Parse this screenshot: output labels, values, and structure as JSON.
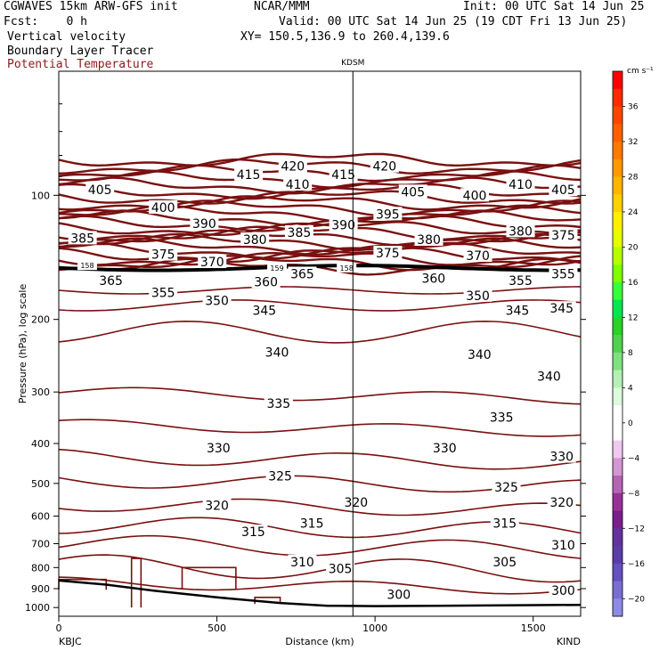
{
  "header": {
    "model": "CGWAVES 15km ARW-GFS init",
    "org": "NCAR/MMM",
    "init": "Init: 00 UTC Sat 14 Jun 25",
    "fcst": "Fcst:    0 h",
    "valid": "Valid: 00 UTC Sat 14 Jun 25 (19 CDT Fri 13 Jun 25)",
    "field1": "Vertical velocity",
    "xy": "XY= 150.5,136.9 to 260.4,139.6",
    "field2": "Boundary Layer Tracer",
    "field3": "Potential Temperature",
    "field3_color": "#8b1a1a"
  },
  "chart_data": {
    "type": "contour",
    "xlabel": "Distance (km)",
    "ylabel": "Pressure (hPa), log scale",
    "xlim": [
      0,
      1650
    ],
    "ylim": [
      1050,
      50
    ],
    "x_ticks": [
      0,
      500,
      1000,
      1500
    ],
    "y_ticks": [
      100,
      200,
      300,
      400,
      500,
      600,
      700,
      800,
      900,
      1000
    ],
    "left_station": "KBJC",
    "right_station": "KIND",
    "marker_station": "KDSM",
    "marker_distance": 930,
    "contour_color": "#7a1010",
    "theta_labels": [
      {
        "v": "420",
        "x": 740,
        "p": 85
      },
      {
        "v": "420",
        "x": 1030,
        "p": 85
      },
      {
        "v": "415",
        "x": 600,
        "p": 89
      },
      {
        "v": "415",
        "x": 900,
        "p": 89
      },
      {
        "v": "410",
        "x": 755,
        "p": 94
      },
      {
        "v": "410",
        "x": 1460,
        "p": 94
      },
      {
        "v": "405",
        "x": 130,
        "p": 97
      },
      {
        "v": "405",
        "x": 1120,
        "p": 98
      },
      {
        "v": "405",
        "x": 1595,
        "p": 97
      },
      {
        "v": "400",
        "x": 330,
        "p": 107
      },
      {
        "v": "400",
        "x": 1315,
        "p": 100
      },
      {
        "v": "395",
        "x": 1040,
        "p": 111
      },
      {
        "v": "390",
        "x": 460,
        "p": 117
      },
      {
        "v": "390",
        "x": 900,
        "p": 118
      },
      {
        "v": "385",
        "x": 75,
        "p": 127
      },
      {
        "v": "385",
        "x": 760,
        "p": 123
      },
      {
        "v": "380",
        "x": 620,
        "p": 128
      },
      {
        "v": "380",
        "x": 1170,
        "p": 128
      },
      {
        "v": "380",
        "x": 1460,
        "p": 122
      },
      {
        "v": "375",
        "x": 330,
        "p": 139
      },
      {
        "v": "375",
        "x": 1040,
        "p": 138
      },
      {
        "v": "375",
        "x": 1595,
        "p": 125
      },
      {
        "v": "370",
        "x": 485,
        "p": 145
      },
      {
        "v": "370",
        "x": 1325,
        "p": 140
      },
      {
        "v": "365",
        "x": 165,
        "p": 161
      },
      {
        "v": "365",
        "x": 770,
        "p": 155
      },
      {
        "v": "360",
        "x": 655,
        "p": 162
      },
      {
        "v": "360",
        "x": 1185,
        "p": 159
      },
      {
        "v": "355",
        "x": 330,
        "p": 172
      },
      {
        "v": "355",
        "x": 1460,
        "p": 161
      },
      {
        "v": "355",
        "x": 1595,
        "p": 155
      },
      {
        "v": "350",
        "x": 500,
        "p": 180
      },
      {
        "v": "350",
        "x": 1325,
        "p": 175
      },
      {
        "v": "345",
        "x": 650,
        "p": 190
      },
      {
        "v": "345",
        "x": 1450,
        "p": 190
      },
      {
        "v": "345",
        "x": 1590,
        "p": 188
      },
      {
        "v": "340",
        "x": 690,
        "p": 240
      },
      {
        "v": "340",
        "x": 1330,
        "p": 243
      },
      {
        "v": "340",
        "x": 1550,
        "p": 275
      },
      {
        "v": "335",
        "x": 695,
        "p": 320
      },
      {
        "v": "335",
        "x": 1400,
        "p": 345
      },
      {
        "v": "330",
        "x": 505,
        "p": 410
      },
      {
        "v": "330",
        "x": 1220,
        "p": 410
      },
      {
        "v": "330",
        "x": 1590,
        "p": 430
      },
      {
        "v": "325",
        "x": 700,
        "p": 480
      },
      {
        "v": "325",
        "x": 1415,
        "p": 510
      },
      {
        "v": "320",
        "x": 500,
        "p": 565
      },
      {
        "v": "320",
        "x": 940,
        "p": 555
      },
      {
        "v": "320",
        "x": 1590,
        "p": 555
      },
      {
        "v": "315",
        "x": 615,
        "p": 655
      },
      {
        "v": "315",
        "x": 800,
        "p": 625
      },
      {
        "v": "315",
        "x": 1410,
        "p": 625
      },
      {
        "v": "310",
        "x": 770,
        "p": 775
      },
      {
        "v": "310",
        "x": 1595,
        "p": 705
      },
      {
        "v": "305",
        "x": 890,
        "p": 805
      },
      {
        "v": "305",
        "x": 1410,
        "p": 775
      },
      {
        "v": "300",
        "x": 1075,
        "p": 930
      },
      {
        "v": "300",
        "x": 1595,
        "p": 910
      }
    ],
    "tracer_labels": [
      {
        "v": "158",
        "x": 90,
        "p": 148
      },
      {
        "v": "159",
        "x": 690,
        "p": 150
      },
      {
        "v": "158",
        "x": 910,
        "p": 150
      }
    ]
  },
  "colorbar": {
    "unit": "cm s⁻¹",
    "labels": [
      "36",
      "32",
      "28",
      "24",
      "20",
      "16",
      "12",
      "8",
      "4",
      "0",
      "−4",
      "−8",
      "−12",
      "−16",
      "−20"
    ],
    "colors": [
      "#ff0000",
      "#ff2a00",
      "#ff4500",
      "#ff6000",
      "#ff7a00",
      "#ff9800",
      "#ffb400",
      "#ffd000",
      "#ffee00",
      "#e6ff00",
      "#b4ff00",
      "#7fff00",
      "#3cff3c",
      "#00e650",
      "#28d228",
      "#50d250",
      "#80e080",
      "#b4f0b4",
      "#dcfadc",
      "#ffffff",
      "#ffffff",
      "#f0c8f0",
      "#d296d2",
      "#b464b4",
      "#963296",
      "#7a1e8c",
      "#64329a",
      "#5a3ca8",
      "#6450be",
      "#7a6ed2",
      "#8c8ce6"
    ]
  }
}
